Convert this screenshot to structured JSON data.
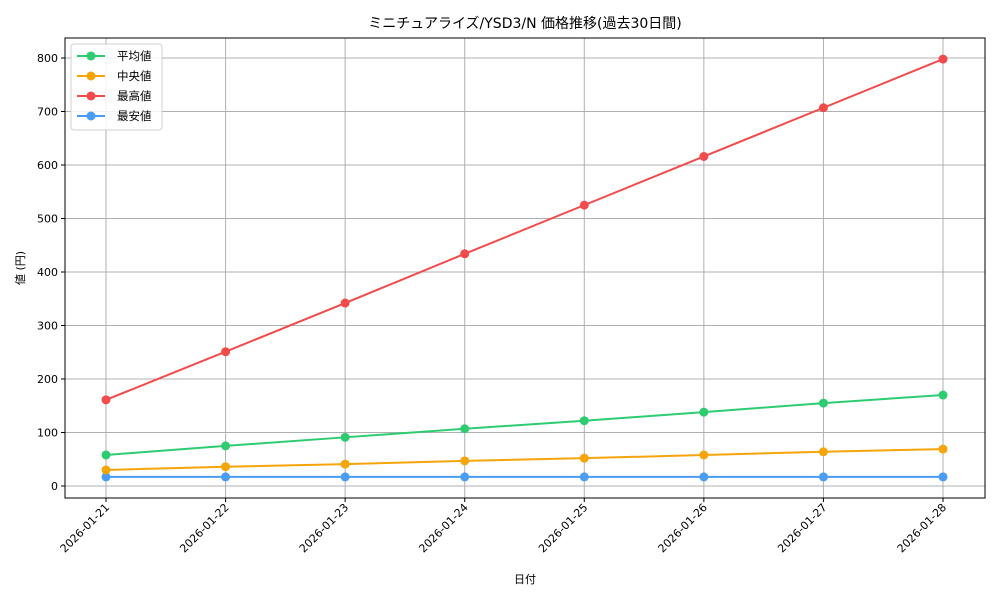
{
  "chart_data": {
    "type": "line",
    "title": "ミニチュアライズ/YSD3/N 価格推移(過去30日間)",
    "xlabel": "日付",
    "ylabel": "値 (円)",
    "categories": [
      "2026-01-21",
      "2026-01-22",
      "2026-01-23",
      "2026-01-24",
      "2026-01-25",
      "2026-01-26",
      "2026-01-27",
      "2026-01-28"
    ],
    "series": [
      {
        "name": "平均値",
        "color": "#2ecc71",
        "values": [
          58,
          75,
          91,
          107,
          122,
          138,
          155,
          170
        ]
      },
      {
        "name": "中央値",
        "color": "#f5a50a",
        "values": [
          30,
          36,
          41,
          47,
          52,
          58,
          64,
          69
        ]
      },
      {
        "name": "最高値",
        "color": "#f24b4b",
        "values": [
          161,
          251,
          342,
          434,
          525,
          616,
          707,
          798
        ]
      },
      {
        "name": "最安値",
        "color": "#4a9cf5",
        "values": [
          17,
          17,
          17,
          17,
          17,
          17,
          17,
          17
        ]
      }
    ],
    "ylim": [
      -22,
      838
    ],
    "yticks": [
      0,
      100,
      200,
      300,
      400,
      500,
      600,
      700,
      800
    ],
    "grid": true,
    "legend_position": "upper left",
    "marker": "circle"
  }
}
